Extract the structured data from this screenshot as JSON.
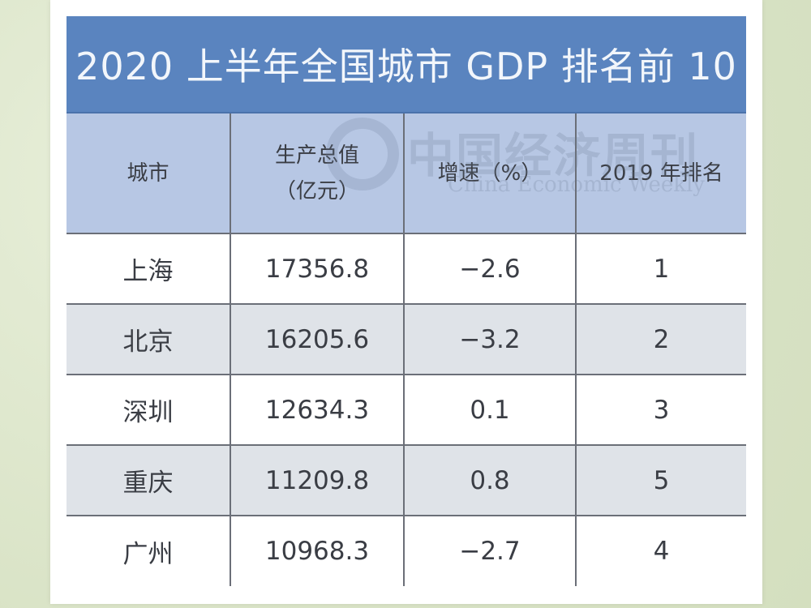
{
  "title": "2020 上半年全国城市 GDP 排名前 10",
  "watermark": {
    "cn": "中国经济周刊",
    "en": "China Economic Weekly"
  },
  "chart_data": {
    "type": "table",
    "title": "2020 上半年全国城市 GDP 排名前 10",
    "columns": [
      {
        "line1": "城市",
        "line2": ""
      },
      {
        "line1": "生产总值",
        "line2": "（亿元）"
      },
      {
        "line1": "增速（%）",
        "line2": ""
      },
      {
        "line1": "2019 年排名",
        "line2": ""
      }
    ],
    "rows": [
      {
        "city": "上海",
        "gdp": "17356.8",
        "growth": "−2.6",
        "rank2019": "1"
      },
      {
        "city": "北京",
        "gdp": "16205.6",
        "growth": "−3.2",
        "rank2019": "2"
      },
      {
        "city": "深圳",
        "gdp": "12634.3",
        "growth": "0.1",
        "rank2019": "3"
      },
      {
        "city": "重庆",
        "gdp": "11209.8",
        "growth": "0.8",
        "rank2019": "5"
      },
      {
        "city": "广州",
        "gdp": "10968.3",
        "growth": "−2.7",
        "rank2019": "4"
      }
    ]
  }
}
